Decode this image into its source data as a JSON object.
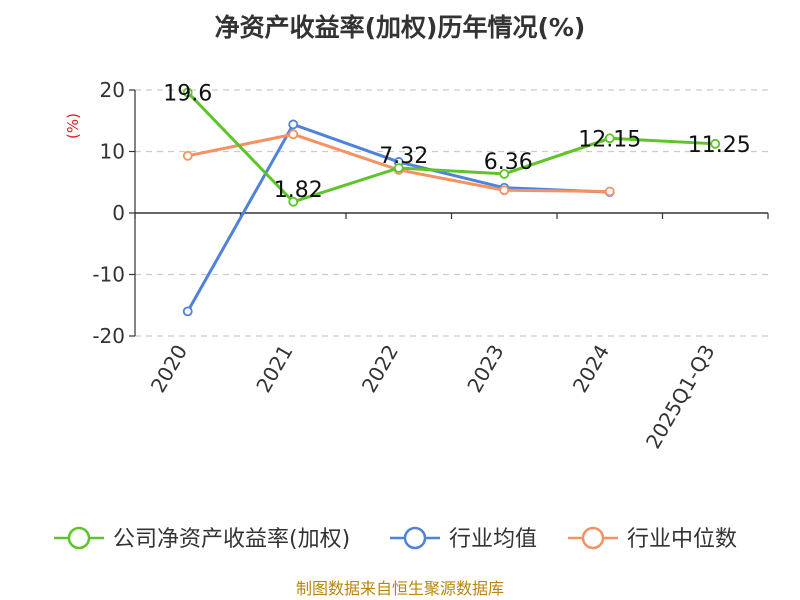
{
  "chart_data": {
    "type": "line",
    "title": "净资产收益率(加权)历年情况(%)",
    "ylabel": "(%)",
    "xlabel": "",
    "categories": [
      "2020",
      "2021",
      "2022",
      "2023",
      "2024",
      "2025Q1-Q3"
    ],
    "ylim": [
      -20,
      20
    ],
    "yticks": [
      20,
      10,
      0,
      -10,
      -20
    ],
    "grid": true,
    "legend_position": "bottom",
    "series": [
      {
        "name": "公司净资产收益率(加权)",
        "color": "#5ec42a",
        "values": [
          19.6,
          1.82,
          7.32,
          6.36,
          12.15,
          11.25
        ],
        "labels": [
          "19.6",
          "1.82",
          "7.32",
          "6.36",
          "12.15",
          "11.25"
        ]
      },
      {
        "name": "行业均值",
        "color": "#4f82d8",
        "values": [
          -16.0,
          14.4,
          8.3,
          4.1,
          3.4,
          null
        ]
      },
      {
        "name": "行业中位数",
        "color": "#f49263",
        "values": [
          9.3,
          12.8,
          7.0,
          3.7,
          3.5,
          null
        ]
      }
    ]
  },
  "source": "制图数据来自恒生聚源数据库"
}
